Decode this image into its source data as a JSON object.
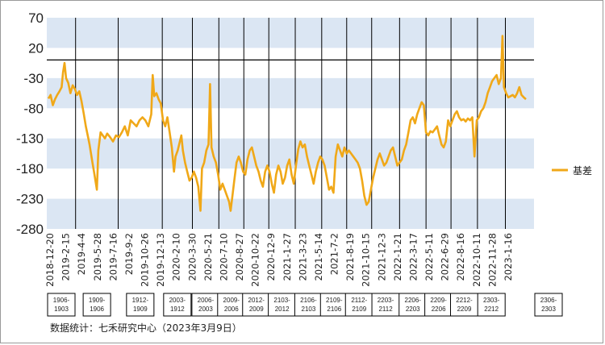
{
  "chart_data": {
    "type": "line",
    "ylim": [
      -280,
      70
    ],
    "yticks": [
      70,
      20,
      -30,
      -80,
      -130,
      -180,
      -230,
      -280
    ],
    "bands": [
      [
        20,
        70
      ],
      [
        -80,
        -30
      ],
      [
        -180,
        -130
      ],
      [
        -280,
        -230
      ]
    ],
    "reference_line_y": 0,
    "series": [
      {
        "name": "基差",
        "color": "#f0a818",
        "points": [
          [
            0,
            -64
          ],
          [
            3,
            -58
          ],
          [
            6,
            -75
          ],
          [
            9,
            -65
          ],
          [
            12,
            -58
          ],
          [
            15,
            -52
          ],
          [
            18,
            -45
          ],
          [
            20,
            -20
          ],
          [
            22,
            -5
          ],
          [
            24,
            -30
          ],
          [
            27,
            -38
          ],
          [
            30,
            -55
          ],
          [
            33,
            -42
          ],
          [
            36,
            -48
          ],
          [
            39,
            -58
          ],
          [
            42,
            -52
          ],
          [
            45,
            -68
          ],
          [
            48,
            -88
          ],
          [
            51,
            -110
          ],
          [
            54,
            -128
          ],
          [
            56,
            -140
          ],
          [
            58,
            -155
          ],
          [
            60,
            -170
          ],
          [
            62,
            -185
          ],
          [
            64,
            -200
          ],
          [
            66,
            -215
          ],
          [
            68,
            -150
          ],
          [
            71,
            -120
          ],
          [
            74,
            -125
          ],
          [
            77,
            -130
          ],
          [
            80,
            -122
          ],
          [
            84,
            -128
          ],
          [
            88,
            -135
          ],
          [
            92,
            -125
          ],
          [
            96,
            -128
          ],
          [
            100,
            -120
          ],
          [
            104,
            -110
          ],
          [
            108,
            -125
          ],
          [
            112,
            -100
          ],
          [
            116,
            -105
          ],
          [
            120,
            -110
          ],
          [
            124,
            -100
          ],
          [
            128,
            -95
          ],
          [
            132,
            -100
          ],
          [
            136,
            -110
          ],
          [
            140,
            -90
          ],
          [
            142,
            -25
          ],
          [
            144,
            -60
          ],
          [
            147,
            -55
          ],
          [
            150,
            -65
          ],
          [
            153,
            -72
          ],
          [
            156,
            -100
          ],
          [
            159,
            -110
          ],
          [
            162,
            -95
          ],
          [
            165,
            -120
          ],
          [
            168,
            -145
          ],
          [
            171,
            -185
          ],
          [
            173,
            -160
          ],
          [
            176,
            -150
          ],
          [
            178,
            -140
          ],
          [
            181,
            -125
          ],
          [
            183,
            -150
          ],
          [
            186,
            -170
          ],
          [
            189,
            -185
          ],
          [
            192,
            -200
          ],
          [
            195,
            -195
          ],
          [
            198,
            -185
          ],
          [
            201,
            -195
          ],
          [
            204,
            -210
          ],
          [
            207,
            -250
          ],
          [
            209,
            -180
          ],
          [
            212,
            -170
          ],
          [
            215,
            -150
          ],
          [
            218,
            -140
          ],
          [
            220,
            -40
          ],
          [
            222,
            -145
          ],
          [
            225,
            -160
          ],
          [
            228,
            -170
          ],
          [
            231,
            -190
          ],
          [
            234,
            -215
          ],
          [
            237,
            -205
          ],
          [
            240,
            -215
          ],
          [
            243,
            -225
          ],
          [
            246,
            -235
          ],
          [
            248,
            -250
          ],
          [
            250,
            -230
          ],
          [
            253,
            -200
          ],
          [
            256,
            -170
          ],
          [
            259,
            -160
          ],
          [
            262,
            -170
          ],
          [
            265,
            -185
          ],
          [
            268,
            -190
          ],
          [
            271,
            -165
          ],
          [
            274,
            -150
          ],
          [
            277,
            -145
          ],
          [
            280,
            -160
          ],
          [
            283,
            -175
          ],
          [
            286,
            -185
          ],
          [
            289,
            -200
          ],
          [
            292,
            -210
          ],
          [
            295,
            -185
          ],
          [
            298,
            -175
          ],
          [
            301,
            -185
          ],
          [
            304,
            -205
          ],
          [
            307,
            -220
          ],
          [
            310,
            -190
          ],
          [
            313,
            -175
          ],
          [
            316,
            -185
          ],
          [
            319,
            -205
          ],
          [
            322,
            -195
          ],
          [
            325,
            -175
          ],
          [
            328,
            -165
          ],
          [
            331,
            -190
          ],
          [
            334,
            -205
          ],
          [
            337,
            -175
          ],
          [
            340,
            -148
          ],
          [
            343,
            -135
          ],
          [
            346,
            -145
          ],
          [
            349,
            -140
          ],
          [
            352,
            -160
          ],
          [
            355,
            -175
          ],
          [
            358,
            -190
          ],
          [
            361,
            -205
          ],
          [
            364,
            -185
          ],
          [
            367,
            -170
          ],
          [
            370,
            -160
          ],
          [
            373,
            -165
          ],
          [
            376,
            -175
          ],
          [
            379,
            -195
          ],
          [
            382,
            -215
          ],
          [
            385,
            -210
          ],
          [
            388,
            -220
          ],
          [
            391,
            -160
          ],
          [
            394,
            -140
          ],
          [
            397,
            -150
          ],
          [
            400,
            -160
          ],
          [
            403,
            -145
          ],
          [
            406,
            -155
          ],
          [
            409,
            -150
          ],
          [
            412,
            -155
          ],
          [
            415,
            -160
          ],
          [
            418,
            -165
          ],
          [
            421,
            -170
          ],
          [
            424,
            -180
          ],
          [
            427,
            -200
          ],
          [
            430,
            -225
          ],
          [
            433,
            -240
          ],
          [
            436,
            -235
          ],
          [
            439,
            -215
          ],
          [
            442,
            -195
          ],
          [
            445,
            -180
          ],
          [
            448,
            -165
          ],
          [
            451,
            -155
          ],
          [
            454,
            -165
          ],
          [
            457,
            -175
          ],
          [
            460,
            -170
          ],
          [
            463,
            -160
          ],
          [
            466,
            -150
          ],
          [
            469,
            -145
          ],
          [
            472,
            -160
          ],
          [
            475,
            -175
          ],
          [
            478,
            -170
          ],
          [
            481,
            -165
          ],
          [
            484,
            -150
          ],
          [
            487,
            -140
          ],
          [
            490,
            -120
          ],
          [
            493,
            -100
          ],
          [
            496,
            -95
          ],
          [
            499,
            -105
          ],
          [
            502,
            -90
          ],
          [
            505,
            -80
          ],
          [
            508,
            -70
          ],
          [
            511,
            -75
          ],
          [
            514,
            -120
          ],
          [
            517,
            -125
          ],
          [
            520,
            -118
          ],
          [
            523,
            -120
          ],
          [
            526,
            -115
          ],
          [
            529,
            -110
          ],
          [
            532,
            -125
          ],
          [
            535,
            -140
          ],
          [
            538,
            -145
          ],
          [
            541,
            -135
          ],
          [
            544,
            -100
          ],
          [
            547,
            -110
          ],
          [
            550,
            -100
          ],
          [
            553,
            -90
          ],
          [
            556,
            -85
          ],
          [
            559,
            -95
          ],
          [
            562,
            -100
          ],
          [
            565,
            -98
          ],
          [
            568,
            -102
          ],
          [
            571,
            -97
          ],
          [
            574,
            -100
          ],
          [
            577,
            -95
          ],
          [
            580,
            -160
          ],
          [
            583,
            -100
          ],
          [
            586,
            -95
          ],
          [
            589,
            -85
          ],
          [
            592,
            -80
          ],
          [
            595,
            -70
          ],
          [
            598,
            -55
          ],
          [
            601,
            -45
          ],
          [
            604,
            -35
          ],
          [
            607,
            -30
          ],
          [
            610,
            -25
          ],
          [
            613,
            -40
          ],
          [
            616,
            -30
          ],
          [
            618,
            40
          ],
          [
            620,
            -45
          ],
          [
            623,
            -55
          ],
          [
            626,
            -62
          ],
          [
            629,
            -60
          ],
          [
            632,
            -58
          ],
          [
            635,
            -62
          ],
          [
            638,
            -55
          ],
          [
            641,
            -45
          ],
          [
            644,
            -58
          ],
          [
            647,
            -62
          ],
          [
            650,
            -65
          ]
        ]
      }
    ],
    "x_tick_labels": [
      "2018-12-20",
      "2019-2-15",
      "2019-4-4",
      "2019-5-28",
      "2019-7-16",
      "2019-9-2",
      "2019-10-26",
      "2019-12-13",
      "2020-2-10",
      "2020-3-30",
      "2020-5-21",
      "2020-7-10",
      "2020-8-27",
      "2020-10-22",
      "2020-12-9",
      "2021-1-27",
      "2021-3-23",
      "2021-5-14",
      "2021-7-2",
      "2021-8-19",
      "2021-10-15",
      "2021-12-3",
      "2022-1-21",
      "2022-3-17",
      "2022-5-11",
      "2022-6-29",
      "2022-8-16",
      "2022-10-11",
      "2022-11-28",
      "2023-1-16"
    ],
    "contract_periods": [
      {
        "label": "1906-1903",
        "start": 0,
        "end": 37
      },
      {
        "label": "1909-1906",
        "start": 37,
        "end": 95
      },
      {
        "label": "1912-1909",
        "start": 95,
        "end": 155
      },
      {
        "label": "2003-1912",
        "start": 155,
        "end": 196
      },
      {
        "label": "2006-2003",
        "start": 196,
        "end": 232
      },
      {
        "label": "2009-2006",
        "start": 232,
        "end": 266
      },
      {
        "label": "2012-2009",
        "start": 266,
        "end": 300
      },
      {
        "label": "2103-2012",
        "start": 300,
        "end": 336
      },
      {
        "label": "2106-2103",
        "start": 336,
        "end": 372
      },
      {
        "label": "2109-2106",
        "start": 372,
        "end": 406
      },
      {
        "label": "2112-2109",
        "start": 406,
        "end": 440
      },
      {
        "label": "2203-2112",
        "start": 440,
        "end": 478
      },
      {
        "label": "2206-2203",
        "start": 478,
        "end": 514
      },
      {
        "label": "2209-2206",
        "start": 514,
        "end": 548
      },
      {
        "label": "2212-2209",
        "start": 548,
        "end": 584
      },
      {
        "label": "2303-2212",
        "start": 584,
        "end": 622
      },
      {
        "label": "2306-2303",
        "start": 622,
        "end": 650
      }
    ],
    "legend": {
      "position": "right",
      "label": "基差"
    }
  },
  "source_note": "数据统计：七禾研究中心（2023年3月9日）"
}
